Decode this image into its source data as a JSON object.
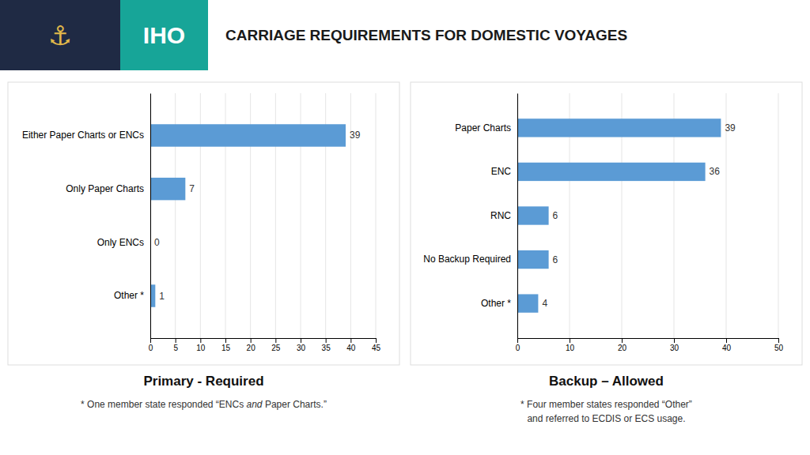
{
  "title": "CARRIAGE REQUIREMENTS FOR DOMESTIC VOYAGES",
  "annotations": [
    "⚓",
    "IHO"
  ],
  "chart_data": [
    {
      "type": "bar",
      "orientation": "horizontal",
      "subtitle": "Primary - Required",
      "categories": [
        "Either Paper Charts or ENCs",
        "Only Paper Charts",
        "Only ENCs",
        "Other *"
      ],
      "values": [
        39,
        7,
        0,
        1
      ],
      "color": "#5b9bd5",
      "xlim": [
        0,
        45
      ],
      "xticks": [
        0,
        5,
        10,
        15,
        20,
        25,
        30,
        35,
        40,
        45
      ],
      "grid": true,
      "data_labels": true,
      "annotations": [
        "* One member state responded “ENCs ",
        "and",
        " Paper Charts.”"
      ]
    },
    {
      "type": "bar",
      "orientation": "horizontal",
      "subtitle": "Backup – Allowed",
      "categories": [
        "Paper Charts",
        "ENC",
        "RNC",
        "No Backup Required",
        "Other *"
      ],
      "values": [
        39,
        36,
        6,
        6,
        4
      ],
      "color": "#5b9bd5",
      "xlim": [
        0,
        50
      ],
      "xticks": [
        0,
        10,
        20,
        30,
        40,
        50
      ],
      "grid": true,
      "data_labels": true,
      "annotations": [
        "* Four member states responded “Other”",
        "and referred to ECDIS or ECS usage."
      ]
    }
  ]
}
